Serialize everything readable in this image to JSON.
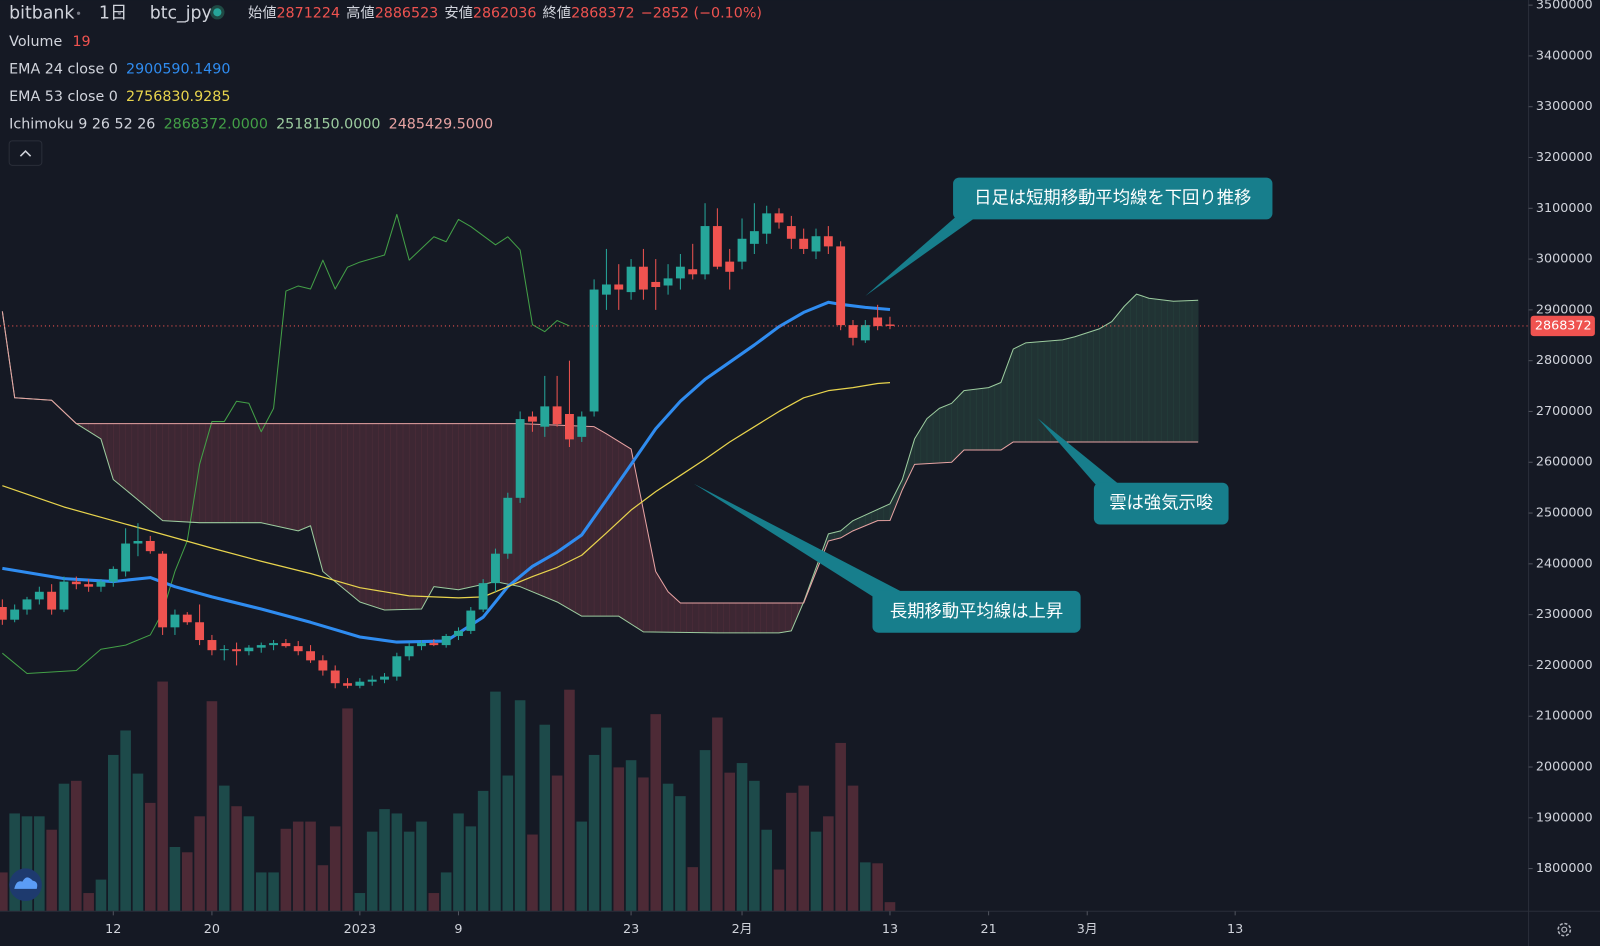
{
  "chart_data": {
    "type": "candlestick",
    "exchange": "bitbank",
    "interval": "1日",
    "symbol": "btc_jpy",
    "ohlc_labels": [
      "始値",
      "高値",
      "安値",
      "終値"
    ],
    "change": "−2852 (−0.10%)",
    "colors": {
      "up": "#26a69a",
      "down": "#ef5350"
    },
    "open": [
      2315000,
      2290000,
      2310000,
      2330000,
      2345000,
      2310000,
      2365000,
      2360000,
      2355000,
      2365000,
      2385000,
      2440000,
      2445000,
      2420000,
      2275000,
      2300000,
      2285000,
      2250000,
      2230000,
      2232000,
      2228000,
      2235000,
      2240000,
      2244000,
      2238000,
      2228000,
      2210000,
      2190000,
      2165000,
      2160000,
      2168000,
      2172000,
      2178000,
      2218000,
      2238000,
      2244000,
      2240000,
      2258000,
      2268000,
      2310000,
      2362000,
      2420000,
      2530000,
      2690000,
      2670000,
      2710000,
      2695000,
      2650000,
      2700000,
      2930000,
      2950000,
      2935000,
      2985000,
      2955000,
      2948000,
      2962000,
      2980000,
      2970000,
      3065000,
      2995000,
      2995000,
      3030000,
      3050000,
      3090000,
      3065000,
      3040000,
      3015000,
      3045000,
      3025000,
      2870000,
      2840000,
      2885000,
      2871224
    ],
    "high": [
      2330000,
      2320000,
      2335000,
      2355000,
      2360000,
      2375000,
      2375000,
      2370000,
      2370000,
      2395000,
      2470000,
      2480000,
      2455000,
      2425000,
      2310000,
      2305000,
      2320000,
      2260000,
      2240000,
      2245000,
      2240000,
      2245000,
      2250000,
      2252000,
      2248000,
      2240000,
      2220000,
      2200000,
      2175000,
      2175000,
      2180000,
      2185000,
      2225000,
      2245000,
      2250000,
      2252000,
      2262000,
      2275000,
      2315000,
      2370000,
      2430000,
      2540000,
      2700000,
      2700000,
      2770000,
      2770000,
      2800000,
      2700000,
      2960000,
      3020000,
      2990000,
      3000000,
      3020000,
      3000000,
      2990000,
      3010000,
      3030000,
      3110000,
      3100000,
      3020000,
      3080000,
      3110000,
      3105000,
      3100000,
      3085000,
      3060000,
      3060000,
      3065000,
      3035000,
      2880000,
      2880000,
      2910000,
      2886523
    ],
    "low": [
      2280000,
      2285000,
      2300000,
      2320000,
      2300000,
      2305000,
      2350000,
      2345000,
      2345000,
      2355000,
      2375000,
      2415000,
      2420000,
      2260000,
      2260000,
      2280000,
      2240000,
      2220000,
      2210000,
      2200000,
      2220000,
      2225000,
      2230000,
      2235000,
      2220000,
      2205000,
      2180000,
      2155000,
      2155000,
      2155000,
      2160000,
      2165000,
      2170000,
      2210000,
      2230000,
      2238000,
      2235000,
      2250000,
      2262000,
      2305000,
      2345000,
      2410000,
      2520000,
      2660000,
      2650000,
      2670000,
      2630000,
      2640000,
      2690000,
      2900000,
      2900000,
      2920000,
      2920000,
      2900000,
      2930000,
      2940000,
      2960000,
      2960000,
      2980000,
      2940000,
      2980000,
      3010000,
      3030000,
      3060000,
      3020000,
      3010000,
      3000000,
      3010000,
      2860000,
      2830000,
      2835000,
      2860000,
      2862036
    ],
    "close": [
      2290000,
      2310000,
      2330000,
      2345000,
      2310000,
      2365000,
      2360000,
      2355000,
      2365000,
      2390000,
      2440000,
      2445000,
      2425000,
      2275000,
      2300000,
      2285000,
      2250000,
      2230000,
      2232000,
      2228000,
      2235000,
      2240000,
      2244000,
      2238000,
      2228000,
      2210000,
      2190000,
      2165000,
      2160000,
      2168000,
      2172000,
      2178000,
      2218000,
      2238000,
      2244000,
      2240000,
      2258000,
      2268000,
      2308000,
      2362000,
      2420000,
      2530000,
      2685000,
      2680000,
      2710000,
      2675000,
      2645000,
      2690000,
      2940000,
      2950000,
      2940000,
      2985000,
      2940000,
      2945000,
      2962000,
      2985000,
      2970000,
      3065000,
      2985000,
      2975000,
      3040000,
      3055000,
      3090000,
      3072000,
      3040000,
      3020000,
      3045000,
      3025000,
      2870000,
      2845000,
      2870000,
      2868000,
      2868372
    ],
    "volume": {
      "name": "Volume",
      "colors": {
        "up": "#1d4a4a",
        "down": "#4d2a36"
      },
      "ylim": [
        0,
        1900
      ],
      "values": [
        81,
        204,
        198,
        198,
        170,
        266,
        272,
        38,
        66,
        326,
        377,
        287,
        226,
        479,
        134,
        123,
        198,
        438,
        262,
        219,
        198,
        81,
        81,
        172,
        187,
        187,
        96,
        177,
        423,
        38,
        166,
        213,
        204,
        166,
        187,
        38,
        81,
        204,
        177,
        251,
        458,
        283,
        440,
        160,
        389,
        283,
        462,
        187,
        326,
        383,
        300,
        315,
        279,
        411,
        266,
        240,
        92,
        336,
        404,
        289,
        309,
        272,
        170,
        87,
        247,
        262,
        166,
        198,
        351,
        262,
        102,
        100,
        19
      ]
    },
    "lines": [
      {
        "name": "EMA 24 close 0",
        "color": "#2f8cf0",
        "label": "2900590.1490",
        "x": [
          0,
          5,
          9,
          12,
          14,
          17,
          21,
          25,
          29,
          32,
          36,
          39,
          41,
          43,
          45,
          47,
          49,
          51,
          53,
          55,
          57,
          59,
          61,
          63,
          65,
          67,
          68,
          70,
          72
        ],
        "values": [
          2391000,
          2371000,
          2365000,
          2373000,
          2355000,
          2335000,
          2311000,
          2285000,
          2256000,
          2246000,
          2248000,
          2295000,
          2355000,
          2395000,
          2423000,
          2457000,
          2526000,
          2596000,
          2666000,
          2720000,
          2763000,
          2797000,
          2831000,
          2867000,
          2895000,
          2915000,
          2911000,
          2905000,
          2900590.149
        ]
      },
      {
        "name": "EMA 53 close 0",
        "color": "#e8d44d",
        "label": "2756830.9285",
        "x": [
          0,
          5,
          9,
          12,
          17,
          21,
          25,
          29,
          33,
          37,
          39,
          41,
          43,
          45,
          47,
          49,
          51,
          53,
          55,
          57,
          59,
          61,
          63,
          65,
          67,
          69,
          71,
          72
        ],
        "values": [
          2554000,
          2512000,
          2485000,
          2465000,
          2431000,
          2405000,
          2381000,
          2353000,
          2337000,
          2333000,
          2335000,
          2355000,
          2375000,
          2393000,
          2417000,
          2461000,
          2506000,
          2542000,
          2574000,
          2606000,
          2640000,
          2670000,
          2700000,
          2727000,
          2741000,
          2747000,
          2755000,
          2756830.9285
        ]
      }
    ],
    "ichimoku": {
      "name": "Ichimoku 9 26 52 26",
      "cloud_colors": {
        "up": "#2b4a42",
        "down": "#5e3340"
      },
      "lines": [
        {
          "color": "#43a047",
          "label": "2868372.0000",
          "x": [
            0,
            2,
            6,
            8,
            10,
            12,
            13,
            14,
            15,
            16,
            17,
            18,
            19,
            20,
            21,
            22,
            23,
            24,
            25,
            26,
            27,
            28,
            29,
            31,
            32,
            33,
            35,
            36,
            37,
            38,
            40,
            41,
            42,
            43,
            44,
            45,
            46
          ],
          "values": [
            2224000,
            2184000,
            2190000,
            2232000,
            2240000,
            2260000,
            2305000,
            2385000,
            2445000,
            2596000,
            2680000,
            2680000,
            2720000,
            2716000,
            2660000,
            2706000,
            2937000,
            2947000,
            2941000,
            2998000,
            2941000,
            2984000,
            2994000,
            3008000,
            3088000,
            2998000,
            3044000,
            3034000,
            3078000,
            3064000,
            3028000,
            3044000,
            3018000,
            2871000,
            2857000,
            2879000,
            2868372
          ]
        },
        {
          "color": "#9ccc9f",
          "label": "2518150.0000",
          "x": [
            0,
            1,
            4,
            6,
            8,
            9,
            11,
            13,
            16,
            21,
            24,
            25,
            26,
            29,
            31,
            34,
            35,
            37,
            40,
            42,
            45,
            47,
            50,
            52,
            58,
            63,
            64,
            65,
            67,
            68,
            69,
            72,
            73,
            74,
            75,
            76,
            77,
            78,
            80,
            81,
            82,
            83,
            86,
            87,
            89,
            90,
            91,
            92,
            93,
            95,
            97
          ],
          "values": [
            2897000,
            2727000,
            2722000,
            2676000,
            2646000,
            2566000,
            2526000,
            2485000,
            2481000,
            2481000,
            2465000,
            2475000,
            2385000,
            2325000,
            2309000,
            2311000,
            2355000,
            2349000,
            2365000,
            2355000,
            2325000,
            2297000,
            2297000,
            2266000,
            2264000,
            2264000,
            2268000,
            2325000,
            2459000,
            2465000,
            2485000,
            2518150,
            2566000,
            2646000,
            2686000,
            2706000,
            2716000,
            2741000,
            2747000,
            2757000,
            2823000,
            2835000,
            2841000,
            2847000,
            2863000,
            2877000,
            2907000,
            2931000,
            2923000,
            2917000,
            2919000
          ]
        },
        {
          "color": "#e8a3a3",
          "label": "2485429.5000",
          "x": [
            0,
            1,
            4,
            6,
            42,
            48,
            49,
            51,
            52,
            53,
            54,
            55,
            65,
            67,
            68,
            69,
            71,
            72,
            73,
            74,
            77,
            78,
            81,
            82,
            97
          ],
          "values": [
            2897000,
            2727000,
            2722000,
            2676000,
            2676000,
            2670000,
            2656000,
            2626000,
            2506000,
            2385000,
            2345000,
            2323000,
            2323000,
            2445000,
            2451000,
            2465000,
            2485000,
            2485429.5,
            2546000,
            2596000,
            2600000,
            2624000,
            2624000,
            2640000,
            2640000
          ]
        }
      ]
    },
    "annotations": [
      "日足は短期移動平均線を下回り推移",
      "雲は強気示唆",
      "長期移動平均線は上昇"
    ],
    "ylim": [
      1716000,
      3510000
    ],
    "yticks": [
      1800000,
      1900000,
      2000000,
      2100000,
      2200000,
      2300000,
      2400000,
      2500000,
      2600000,
      2700000,
      2800000,
      2900000,
      3000000,
      3100000,
      3200000,
      3300000,
      3400000,
      3500000
    ],
    "xlim": [
      -0.19,
      123.8
    ],
    "xticks": [
      {
        "value": 9,
        "label": "12"
      },
      {
        "value": 17,
        "label": "20"
      },
      {
        "value": 29,
        "label": "2023"
      },
      {
        "value": 37,
        "label": "9"
      },
      {
        "value": 51,
        "label": "23"
      },
      {
        "value": 60,
        "label": "2月"
      },
      {
        "value": 72,
        "label": "13"
      },
      {
        "value": 80,
        "label": "21"
      },
      {
        "value": 88,
        "label": "3月"
      },
      {
        "value": 100,
        "label": "13"
      }
    ]
  }
}
